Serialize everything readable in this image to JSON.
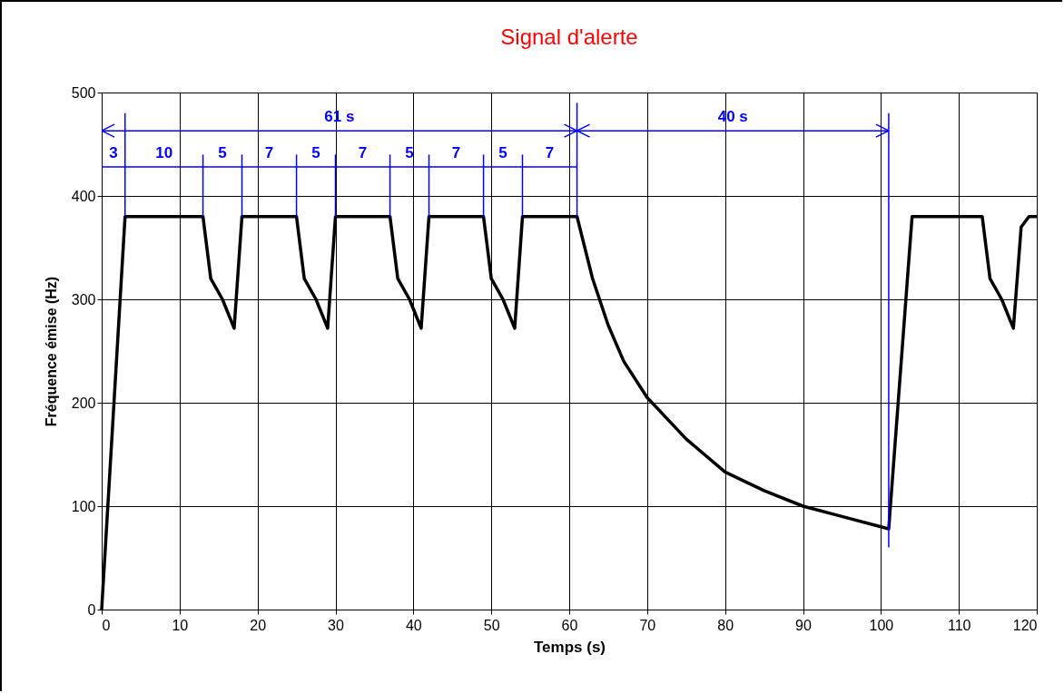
{
  "chart_data": {
    "type": "line",
    "title": "Signal d'alerte",
    "xlabel": "Temps (s)",
    "ylabel": "Fréquence émise (Hz)",
    "xlim": [
      0,
      120
    ],
    "xticks": [
      0,
      10,
      20,
      30,
      40,
      50,
      60,
      70,
      80,
      90,
      100,
      110,
      120
    ],
    "ylim": [
      0,
      500
    ],
    "yticks": [
      0,
      100,
      200,
      300,
      400,
      500
    ],
    "grid": true,
    "marker": "none",
    "line_style": "solid",
    "series": [
      {
        "color": "#000000",
        "x": [
          0,
          3,
          13,
          14,
          15.5,
          17,
          18,
          25,
          26,
          27.5,
          29,
          30,
          37,
          38,
          39.5,
          41,
          42,
          49,
          50,
          51.5,
          53,
          54,
          61,
          63,
          65,
          67,
          70,
          75,
          80,
          85,
          90,
          95,
          100,
          101,
          104,
          113,
          114,
          115.5,
          117,
          118,
          119,
          120
        ],
        "values": [
          0,
          380,
          380,
          320,
          300,
          272,
          380,
          380,
          320,
          300,
          272,
          380,
          380,
          320,
          300,
          272,
          380,
          380,
          320,
          300,
          272,
          380,
          380,
          320,
          275,
          240,
          205,
          165,
          133,
          115,
          100,
          90,
          80,
          78,
          380,
          380,
          320,
          300,
          272,
          370,
          380,
          380
        ]
      },
      {
        "color": "#0000ff",
        "x": [
          0,
          61,
          101
        ],
        "values": [
          463,
          463,
          463
        ]
      },
      {
        "color": "#0000ff",
        "x": [
          0,
          61
        ],
        "values": [
          428,
          428
        ]
      },
      {
        "color": "#0000ff",
        "x": [
          3,
          3
        ],
        "values": [
          480,
          380
        ]
      },
      {
        "color": "#0000ff",
        "x": [
          13,
          13
        ],
        "values": [
          440,
          380
        ]
      },
      {
        "color": "#0000ff",
        "x": [
          18,
          18
        ],
        "values": [
          440,
          380
        ]
      },
      {
        "color": "#0000ff",
        "x": [
          25,
          25
        ],
        "values": [
          440,
          380
        ]
      },
      {
        "color": "#0000ff",
        "x": [
          30,
          30
        ],
        "values": [
          440,
          380
        ]
      },
      {
        "color": "#0000ff",
        "x": [
          37,
          37
        ],
        "values": [
          440,
          380
        ]
      },
      {
        "color": "#0000ff",
        "x": [
          42,
          42
        ],
        "values": [
          440,
          380
        ]
      },
      {
        "color": "#0000ff",
        "x": [
          49,
          49
        ],
        "values": [
          440,
          380
        ]
      },
      {
        "color": "#0000ff",
        "x": [
          54,
          54
        ],
        "values": [
          440,
          380
        ]
      },
      {
        "color": "#0000ff",
        "x": [
          61,
          61
        ],
        "values": [
          490,
          380
        ]
      },
      {
        "color": "#0000ff",
        "x": [
          101,
          101
        ],
        "values": [
          480,
          60
        ]
      }
    ],
    "annotations": [
      {
        "text": "61 s",
        "x": 30.5,
        "y": 463
      },
      {
        "text": "40 s",
        "x": 81,
        "y": 463
      },
      {
        "text": "3",
        "x": 1.5,
        "y": 428
      },
      {
        "text": "10",
        "x": 8,
        "y": 428
      },
      {
        "text": "5",
        "x": 15.5,
        "y": 428
      },
      {
        "text": "7",
        "x": 21.5,
        "y": 428
      },
      {
        "text": "5",
        "x": 27.5,
        "y": 428
      },
      {
        "text": "7",
        "x": 33.5,
        "y": 428
      },
      {
        "text": "5",
        "x": 39.5,
        "y": 428
      },
      {
        "text": "7",
        "x": 45.5,
        "y": 428
      },
      {
        "text": "5",
        "x": 51.5,
        "y": 428
      },
      {
        "text": "7",
        "x": 57.5,
        "y": 428
      }
    ]
  }
}
